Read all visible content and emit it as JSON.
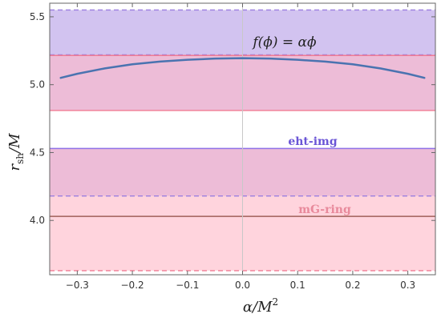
{
  "chart_data": {
    "type": "line",
    "xlabel_main": "α/M",
    "xlabel_sup": "2",
    "ylabel_main": "r",
    "ylabel_sub": "sh",
    "ylabel_tail": "/M",
    "xlim": [
      -0.35,
      0.35
    ],
    "ylim": [
      3.6,
      5.6
    ],
    "x_ticks": [
      -0.3,
      -0.2,
      -0.1,
      0.0,
      0.1,
      0.2,
      0.3
    ],
    "x_tick_labels": [
      "−0.3",
      "−0.2",
      "−0.1",
      "0.0",
      "0.1",
      "0.2",
      "0.3"
    ],
    "y_ticks": [
      4.0,
      4.5,
      5.0,
      5.5
    ],
    "y_tick_labels": [
      "4.0",
      "4.5",
      "5.0",
      "5.5"
    ],
    "series": [
      {
        "color": "#4a73b0",
        "x": [
          -0.33,
          -0.3,
          -0.25,
          -0.2,
          -0.15,
          -0.1,
          -0.05,
          0.0,
          0.05,
          0.1,
          0.15,
          0.2,
          0.25,
          0.3,
          0.33
        ],
        "y": [
          5.05,
          5.08,
          5.12,
          5.15,
          5.17,
          5.183,
          5.192,
          5.195,
          5.192,
          5.183,
          5.17,
          5.15,
          5.12,
          5.08,
          5.05
        ]
      }
    ],
    "bands": [
      {
        "name": "eht-img",
        "color": "#b49be6",
        "opacity": 0.6,
        "y_low": 4.18,
        "y_high": 5.55,
        "label_color": "#6a55d6"
      },
      {
        "name": "mG-ring",
        "color": "#ffb8c6",
        "opacity": 0.6,
        "y_low": 3.63,
        "y_high": 5.22,
        "label_color": "#e88a9c"
      }
    ],
    "overlap_region": {
      "y_low": 4.53,
      "y_high": 4.81
    },
    "reference_lines": [
      {
        "y": 5.55,
        "color": "#9b7fe0",
        "style": "dashed"
      },
      {
        "y": 5.22,
        "color": "#9b7fe0",
        "style": "dashed"
      },
      {
        "y": 5.215,
        "color": "#f07c94",
        "style": "solid"
      },
      {
        "y": 4.81,
        "color": "#f07c94",
        "style": "solid"
      },
      {
        "y": 4.53,
        "color": "#8f72e6",
        "style": "solid"
      },
      {
        "y": 4.18,
        "color": "#9b7fe0",
        "style": "dashed"
      },
      {
        "y": 4.03,
        "color": "#a0605a",
        "style": "solid"
      },
      {
        "y": 3.63,
        "color": "#f07c94",
        "style": "dashed"
      }
    ],
    "vertical_line": {
      "x": 0.0,
      "color": "#c8c8c8"
    },
    "annotation_function": "f(ϕ) = αϕ",
    "grid": false
  }
}
